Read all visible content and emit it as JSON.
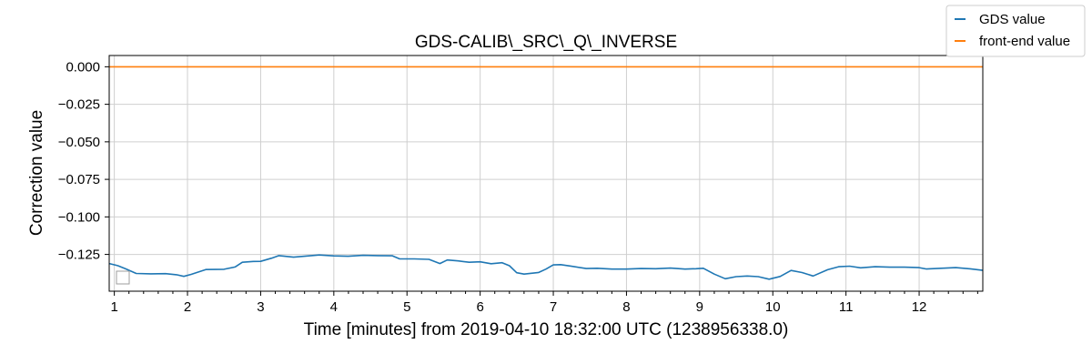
{
  "chart_data": {
    "type": "line",
    "title": "GDS-CALIB\\_SRC\\_Q\\_INVERSE",
    "xlabel": "Time [minutes] from 2019-04-10 18:32:00 UTC (1238956338.0)",
    "ylabel": "Correction value",
    "xlim": [
      0.93,
      12.87
    ],
    "ylim": [
      -0.1495,
      0.0075
    ],
    "x_ticks": [
      1,
      2,
      3,
      4,
      5,
      6,
      7,
      8,
      9,
      10,
      11,
      12
    ],
    "x_tick_labels": [
      "1",
      "2",
      "3",
      "4",
      "5",
      "6",
      "7",
      "8",
      "9",
      "10",
      "11",
      "12"
    ],
    "y_ticks": [
      0.0,
      -0.025,
      -0.05,
      -0.075,
      -0.1,
      -0.125
    ],
    "y_tick_labels": [
      "0.000",
      "−0.025",
      "−0.050",
      "−0.075",
      "−0.100",
      "−0.125"
    ],
    "grid": true,
    "legend_position": "top-right",
    "series": [
      {
        "name": "GDS value",
        "color": "#1f77b4",
        "x": [
          0.93,
          1.05,
          1.15,
          1.3,
          1.5,
          1.7,
          1.85,
          1.95,
          2.05,
          2.25,
          2.5,
          2.65,
          2.75,
          2.9,
          3.0,
          3.15,
          3.25,
          3.45,
          3.6,
          3.8,
          4.0,
          4.2,
          4.4,
          4.6,
          4.8,
          4.9,
          5.1,
          5.3,
          5.45,
          5.55,
          5.7,
          5.85,
          6.0,
          6.15,
          6.3,
          6.4,
          6.5,
          6.6,
          6.8,
          6.9,
          7.0,
          7.1,
          7.25,
          7.45,
          7.6,
          7.8,
          8.0,
          8.2,
          8.4,
          8.6,
          8.8,
          8.95,
          9.05,
          9.2,
          9.35,
          9.5,
          9.65,
          9.8,
          9.95,
          10.1,
          10.25,
          10.4,
          10.55,
          10.75,
          10.9,
          11.05,
          11.2,
          11.4,
          11.6,
          11.8,
          12.0,
          12.1,
          12.3,
          12.5,
          12.7,
          12.87
        ],
        "y": [
          -0.1311,
          -0.1325,
          -0.1345,
          -0.1377,
          -0.1379,
          -0.1378,
          -0.1385,
          -0.1396,
          -0.1383,
          -0.1351,
          -0.1349,
          -0.1334,
          -0.1302,
          -0.1297,
          -0.1296,
          -0.1275,
          -0.1258,
          -0.1268,
          -0.1262,
          -0.1254,
          -0.126,
          -0.1262,
          -0.1256,
          -0.1258,
          -0.1259,
          -0.128,
          -0.128,
          -0.1283,
          -0.1311,
          -0.1287,
          -0.1293,
          -0.1302,
          -0.1299,
          -0.1312,
          -0.1305,
          -0.1325,
          -0.1372,
          -0.1381,
          -0.137,
          -0.1348,
          -0.132,
          -0.1318,
          -0.1329,
          -0.1344,
          -0.1342,
          -0.1348,
          -0.1348,
          -0.1344,
          -0.1345,
          -0.1341,
          -0.1348,
          -0.1345,
          -0.1342,
          -0.1381,
          -0.1412,
          -0.1398,
          -0.1394,
          -0.1398,
          -0.1415,
          -0.1397,
          -0.1357,
          -0.1371,
          -0.1394,
          -0.1352,
          -0.1332,
          -0.1328,
          -0.1339,
          -0.1332,
          -0.1335,
          -0.1335,
          -0.1338,
          -0.1347,
          -0.1342,
          -0.1338,
          -0.1346,
          -0.1356
        ]
      },
      {
        "name": "front-end value",
        "color": "#ff7f0e",
        "x": [
          0.93,
          12.87
        ],
        "y": [
          0.0,
          0.0
        ]
      }
    ]
  }
}
